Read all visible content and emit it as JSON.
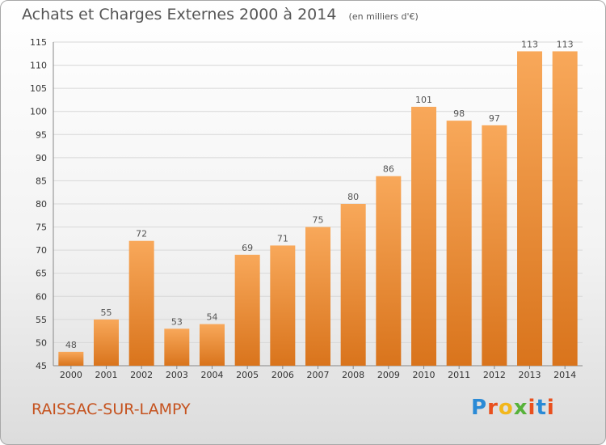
{
  "title": "Achats et Charges Externes 2000 à 2014",
  "subtitle": "(en milliers d'€)",
  "town": "RAISSAC-SUR-LAMPY",
  "brand": {
    "text": "Proxiti",
    "colors": [
      "#2a8ad6",
      "#e9501e",
      "#f2b71c",
      "#57b23a",
      "#e9501e",
      "#2a8ad6",
      "#e9501e"
    ]
  },
  "colors": {
    "bar_top": "#f8a85a",
    "bar_bottom": "#d9741c",
    "grid": "#d8d8d8",
    "axis_text": "#333333",
    "label_text": "#555555"
  },
  "chart_data": {
    "type": "bar",
    "categories": [
      "2000",
      "2001",
      "2002",
      "2003",
      "2004",
      "2005",
      "2006",
      "2007",
      "2008",
      "2009",
      "2010",
      "2011",
      "2012",
      "2013",
      "2014"
    ],
    "values": [
      48,
      55,
      72,
      53,
      54,
      69,
      71,
      75,
      80,
      86,
      101,
      98,
      97,
      113,
      113
    ],
    "ylim": [
      45,
      115
    ],
    "yticks": [
      45,
      50,
      55,
      60,
      65,
      70,
      75,
      80,
      85,
      90,
      95,
      100,
      105,
      110,
      115
    ],
    "grid": true
  }
}
